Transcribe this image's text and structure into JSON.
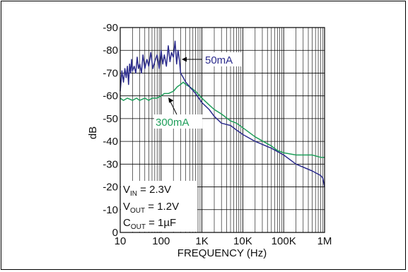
{
  "chart_data": {
    "type": "line",
    "xlabel": "FREQUENCY (Hz)",
    "ylabel": "dB",
    "x_scale": "log",
    "xlim": [
      10,
      1000000
    ],
    "ylim": [
      0,
      -90
    ],
    "y_ticks": [
      0,
      -10,
      -20,
      -30,
      -40,
      -50,
      -60,
      -70,
      -80,
      -90
    ],
    "y_tick_labels": [
      "0",
      "-10",
      "-20",
      "-30",
      "-40",
      "-50",
      "-60",
      "-70",
      "-80",
      "-90"
    ],
    "x_ticks": [
      10,
      100,
      1000,
      10000,
      100000,
      1000000
    ],
    "x_tick_labels": [
      "10",
      "100",
      "1K",
      "10K",
      "100K",
      "1M"
    ],
    "grid": true,
    "series": [
      {
        "name": "50mA",
        "color": "#2b2b8c",
        "x": [
          10,
          11,
          12,
          13,
          14,
          15,
          16,
          17,
          18,
          19,
          20,
          22,
          24,
          26,
          28,
          30,
          33,
          36,
          40,
          45,
          50,
          56,
          63,
          70,
          80,
          90,
          100,
          110,
          120,
          135,
          150,
          165,
          180,
          200,
          220,
          240,
          260,
          280,
          300,
          350,
          400,
          500,
          700,
          1000,
          1500,
          2000,
          3000,
          5000,
          7000,
          10000,
          20000,
          50000,
          100000,
          200000,
          500000,
          800000,
          900000,
          1000000
        ],
        "y": [
          -62,
          -71,
          -66,
          -72,
          -68,
          -73,
          -65,
          -74,
          -70,
          -76,
          -71,
          -73,
          -70,
          -77,
          -72,
          -74,
          -70,
          -78,
          -72,
          -76,
          -73,
          -79,
          -72,
          -75,
          -78,
          -72,
          -80,
          -74,
          -78,
          -73,
          -82,
          -75,
          -79,
          -77,
          -84,
          -74,
          -80,
          -76,
          -70,
          -68,
          -66,
          -64,
          -61,
          -57,
          -54,
          -51,
          -48,
          -47,
          -45,
          -43,
          -40,
          -37,
          -34,
          -30,
          -27,
          -25,
          -24,
          -20
        ]
      },
      {
        "name": "300mA",
        "color": "#1e9e5a",
        "x": [
          10,
          12,
          15,
          20,
          25,
          30,
          40,
          50,
          60,
          70,
          80,
          100,
          120,
          150,
          200,
          250,
          300,
          350,
          400,
          500,
          700,
          1000,
          1500,
          2000,
          3000,
          5000,
          7000,
          10000,
          20000,
          50000,
          70000,
          100000,
          200000,
          500000,
          800000,
          1000000
        ],
        "y": [
          -59,
          -58,
          -59,
          -58,
          -59,
          -58,
          -59,
          -58,
          -59,
          -59,
          -59,
          -60,
          -61,
          -61,
          -62,
          -64,
          -65,
          -66,
          -65,
          -64,
          -62,
          -59,
          -56,
          -54,
          -52,
          -49,
          -48,
          -46,
          -42,
          -38,
          -36,
          -35,
          -34,
          -34,
          -33,
          -33
        ]
      }
    ],
    "annotations": {
      "series_labels": [
        "50mA",
        "300mA"
      ],
      "conditions": [
        {
          "sym": "V",
          "sub": "IN",
          "rest": " = 2.3V"
        },
        {
          "sym": "V",
          "sub": "OUT",
          "rest": " = 1.2V"
        },
        {
          "sym": "C",
          "sub": "OUT",
          "rest": " = 1µF"
        }
      ]
    }
  }
}
